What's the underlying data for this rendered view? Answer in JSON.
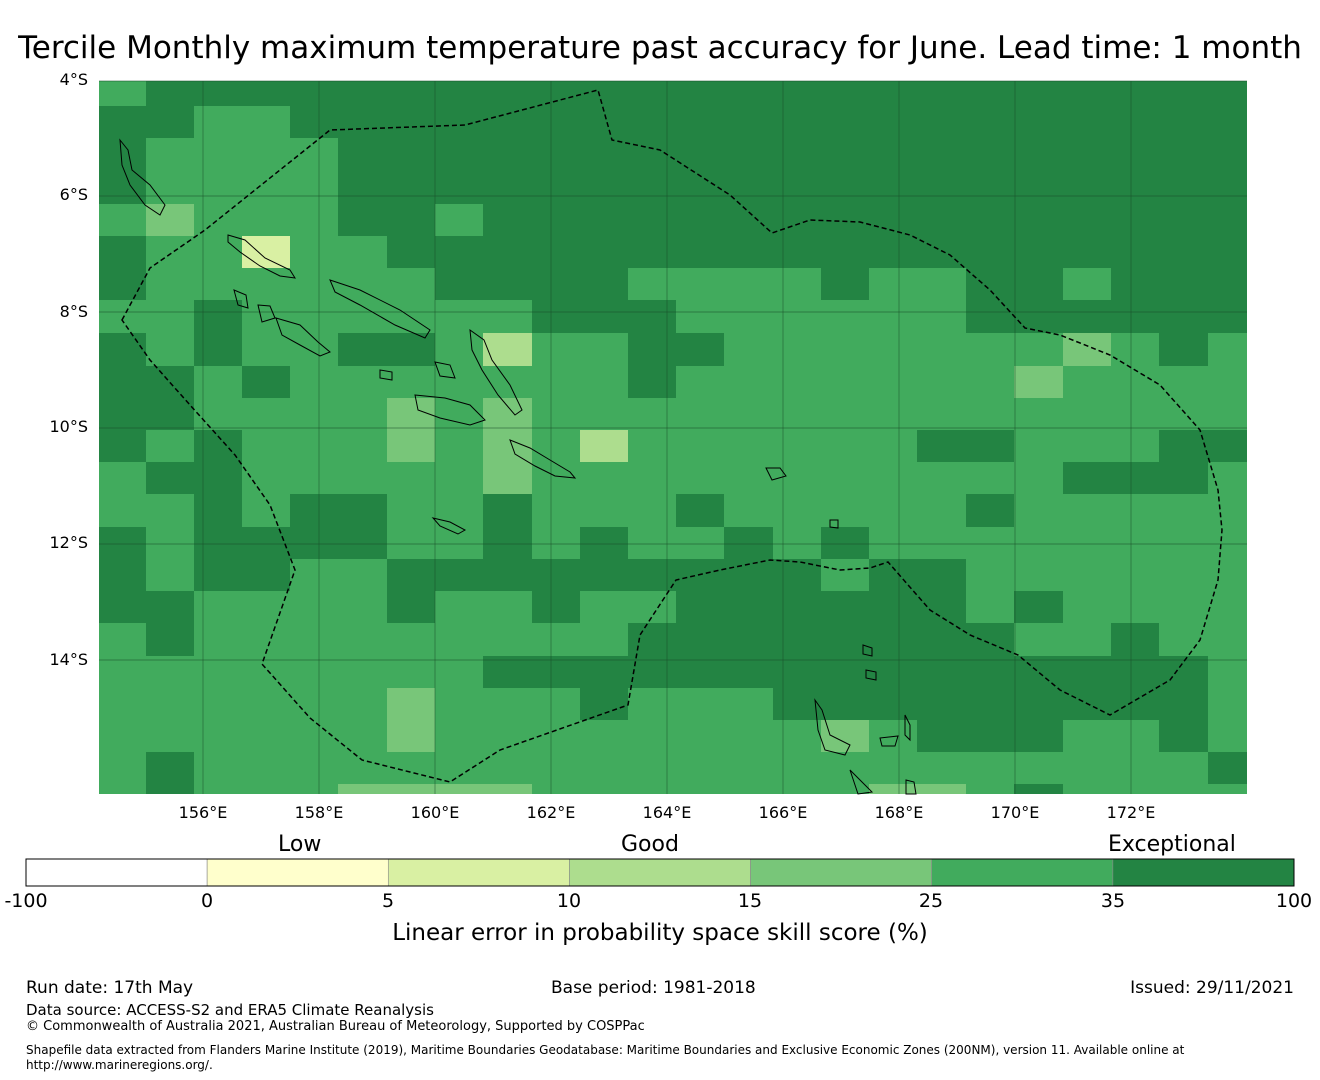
{
  "title": "Tercile Monthly maximum temperature past accuracy for June. Lead time: 1 month",
  "map": {
    "lat_labels": [
      "4°S",
      "6°S",
      "8°S",
      "10°S",
      "12°S",
      "14°S"
    ],
    "lon_labels": [
      "156°E",
      "158°E",
      "160°E",
      "162°E",
      "164°E",
      "166°E",
      "168°E",
      "170°E",
      "172°E"
    ],
    "extent": {
      "lon": [
        154.2,
        174.0
      ],
      "lat": [
        -16.3,
        -4.0
      ]
    },
    "colors": {
      "c25_35": "#41ab5d",
      "c35_100": "#238443",
      "c15_25": "#78c679",
      "c10_15": "#addd8e",
      "c5_10": "#d9f0a3"
    }
  },
  "colorbar": {
    "quality_labels": [
      "Low",
      "Good",
      "Exceptional"
    ],
    "ticks": [
      "-100",
      "0",
      "5",
      "10",
      "15",
      "25",
      "35",
      "100"
    ],
    "colors": [
      "#ffffff",
      "#ffffcc",
      "#d9f0a3",
      "#addd8e",
      "#78c679",
      "#41ab5d",
      "#238443"
    ],
    "label": "Linear error in probability space skill score (%)"
  },
  "footer": {
    "run_date": "Run date: 17th May",
    "base_period": "Base period: 1981-2018",
    "issued": "Issued: 29/11/2021",
    "data_source": "Data source: ACCESS-S2 and ERA5 Climate Reanalysis",
    "copyright": "© Commonwealth of Australia 2021, Australian Bureau of Meteorology, Supported by COSPPac",
    "shapefile_line1": "Shapefile data extracted from Flanders Marine Institute (2019), Maritime Boundaries Geodatabase: Maritime Boundaries and Exclusive Economic Zones (200NM), version 11. Available online at",
    "shapefile_line2": "http://www.marineregions.org/."
  }
}
